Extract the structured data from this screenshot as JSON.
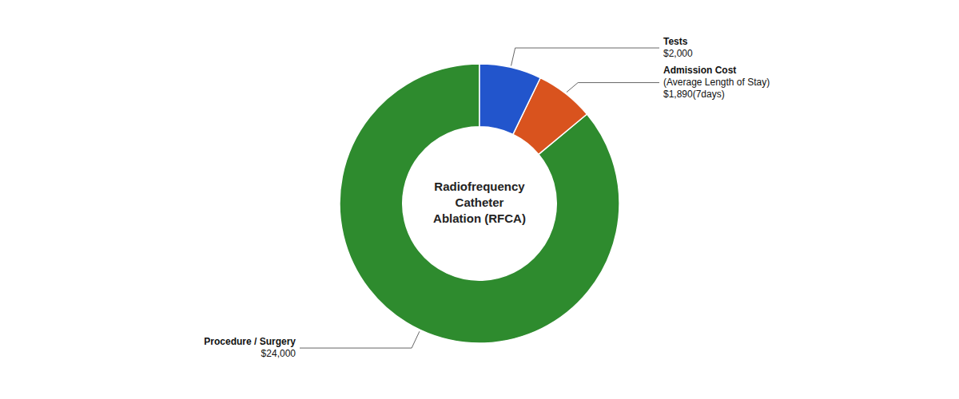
{
  "chart_data": {
    "type": "donut",
    "title": [
      "Radiofrequency",
      "Catheter",
      "Ablation (RFCA)"
    ],
    "categories": [
      "Procedure / Surgery",
      "Admission Cost",
      "Tests"
    ],
    "values": [
      85.7,
      6.75,
      7.14
    ],
    "colors": [
      "#2e8b2e",
      "#d9531e",
      "#2255cc"
    ],
    "annotations": [
      [
        "$24,000"
      ],
      [
        "(Average Length of Stay)",
        "$1,890(7days)"
      ],
      [
        "$2,000"
      ]
    ]
  }
}
